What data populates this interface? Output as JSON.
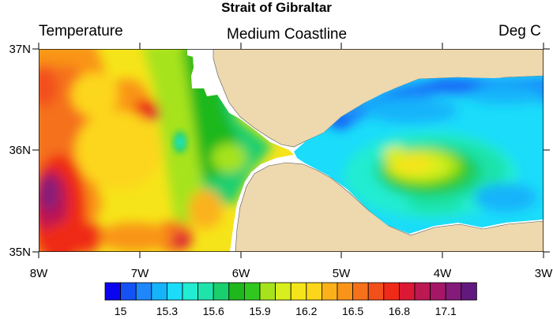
{
  "title": "Strait of Gibraltar",
  "left_string": "Temperature",
  "center_string": "Medium Coastline",
  "right_string": "Deg C",
  "lat_labels": [
    "37N",
    "36N",
    "35N"
  ],
  "lon_labels": [
    "8W",
    "7W",
    "6W",
    "5W",
    "4W",
    "3W"
  ],
  "labelbar": {
    "labels": [
      "15",
      "15.3",
      "15.6",
      "15.9",
      "16.2",
      "16.5",
      "16.8",
      "17.1"
    ],
    "colors": [
      "#0a04f0",
      "#1552f6",
      "#1e87fa",
      "#15b4fa",
      "#1bdcfa",
      "#22ecd2",
      "#1fe3aa",
      "#1acf6e",
      "#1fb81c",
      "#30c81e",
      "#a6e31d",
      "#d8ee1e",
      "#f6e41a",
      "#fcd61a",
      "#fbb21a",
      "#f99419",
      "#f5711a",
      "#f2501a",
      "#ef2a18",
      "#dc1835",
      "#bc1852",
      "#a51766",
      "#841a7a",
      "#62197f"
    ]
  },
  "colors": {
    "land": "#eed8ae",
    "water_missing": "#ffffff"
  }
}
